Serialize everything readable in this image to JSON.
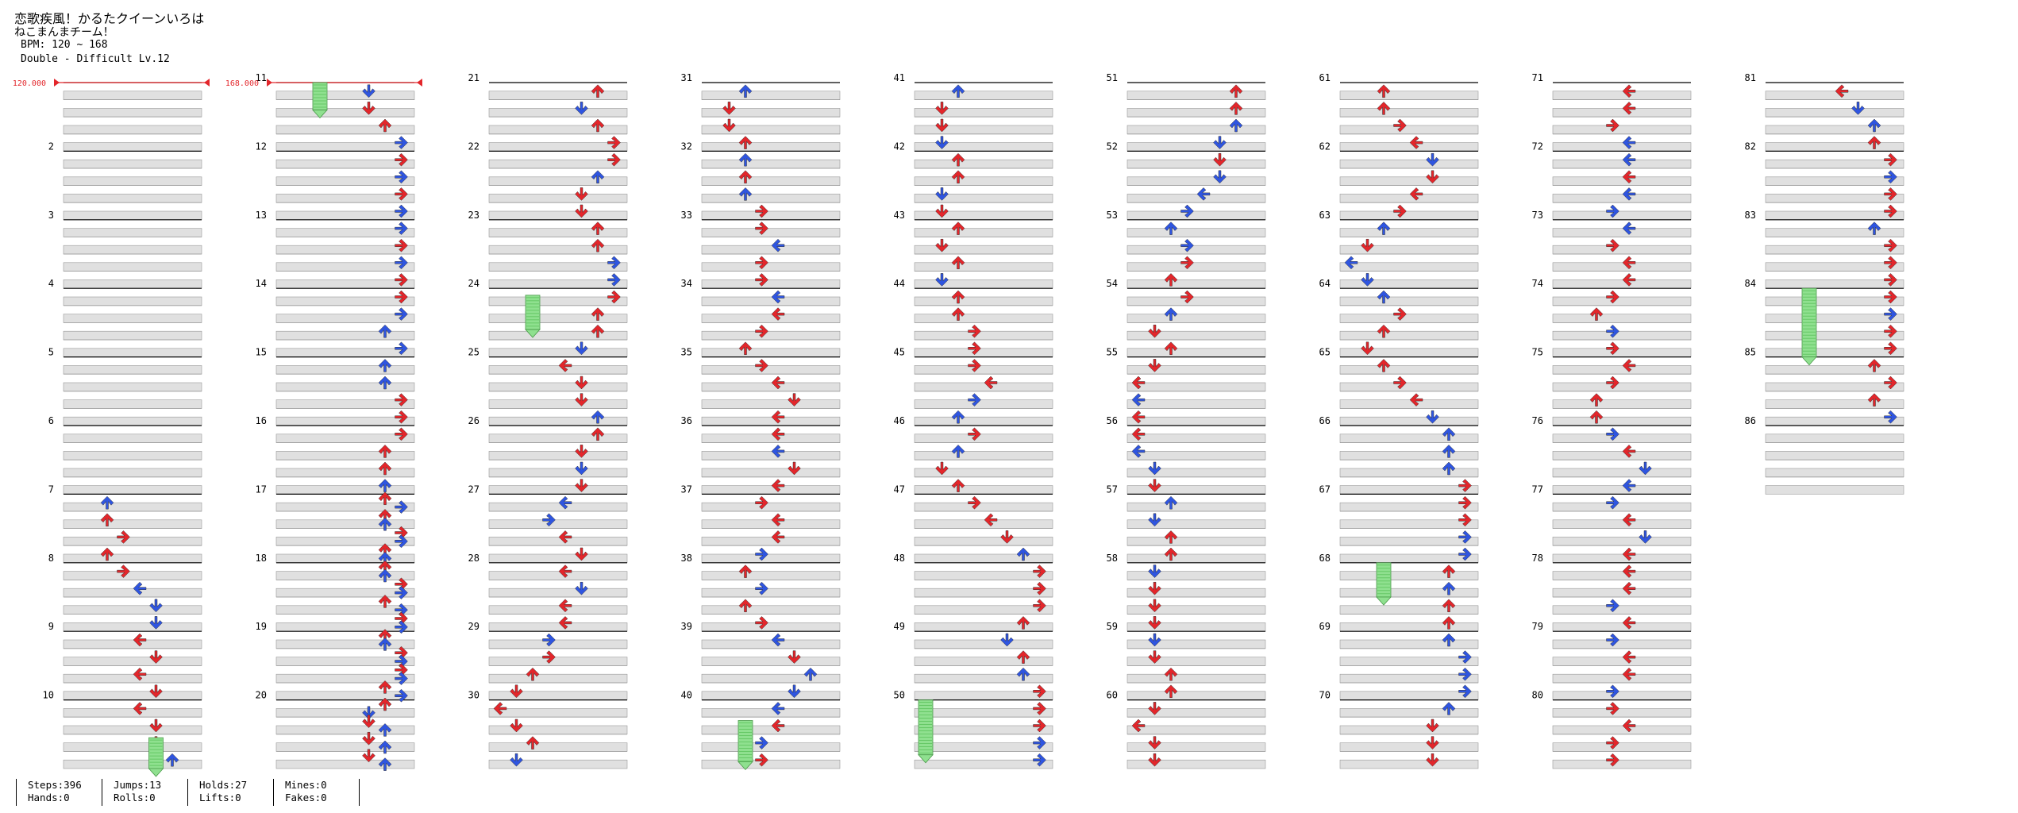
{
  "song": {
    "title": "恋歌疾風！かるたクイーンいろは",
    "artist": "ねこまんまチーム！",
    "bpm_text": "BPM: 120 ~ 168",
    "difficulty_text": "Double - Difficult  Lv.12"
  },
  "bpm_markers": [
    {
      "label": "120.000",
      "measure": 1
    },
    {
      "label": "168.000",
      "measure": 11
    }
  ],
  "measure_numbers": [
    "2",
    "3",
    "4",
    "5",
    "6",
    "7",
    "8",
    "9",
    "10",
    "11",
    "12",
    "13",
    "14",
    "15",
    "16",
    "17",
    "18",
    "19",
    "20",
    "21",
    "22",
    "23",
    "24",
    "25",
    "26",
    "27",
    "28",
    "29",
    "30",
    "31",
    "32",
    "33",
    "34",
    "35",
    "36",
    "37",
    "38",
    "39",
    "40",
    "41",
    "42",
    "43",
    "44",
    "45",
    "46",
    "47",
    "48",
    "49",
    "50",
    "51",
    "52",
    "53",
    "54",
    "55",
    "56",
    "57",
    "58",
    "59",
    "60",
    "61",
    "62",
    "63",
    "64",
    "65",
    "66",
    "67",
    "68",
    "69",
    "70",
    "71",
    "72",
    "73",
    "74",
    "75",
    "76",
    "77",
    "78",
    "79",
    "80",
    "81",
    "82",
    "83",
    "84",
    "85",
    "86"
  ],
  "total_measures": 86,
  "colors": {
    "quarter_arrow": "#e3262b",
    "eighth_arrow": "#2f55e0",
    "sixteenth_arrow": "#f0e040",
    "hold_body": "#8fe08f",
    "hold_stripe": "#5cc25c",
    "lane_grey": "#e0e0e0",
    "bpm_line": "#e3262b"
  },
  "stats": {
    "steps": "Steps:396",
    "hands": "Hands:0",
    "jumps": "Jumps:13",
    "rolls": "Rolls:0",
    "holds": "Holds:27",
    "lifts": "Lifts:0",
    "mines": "Mines:0",
    "fakes": "Fakes:0"
  }
}
